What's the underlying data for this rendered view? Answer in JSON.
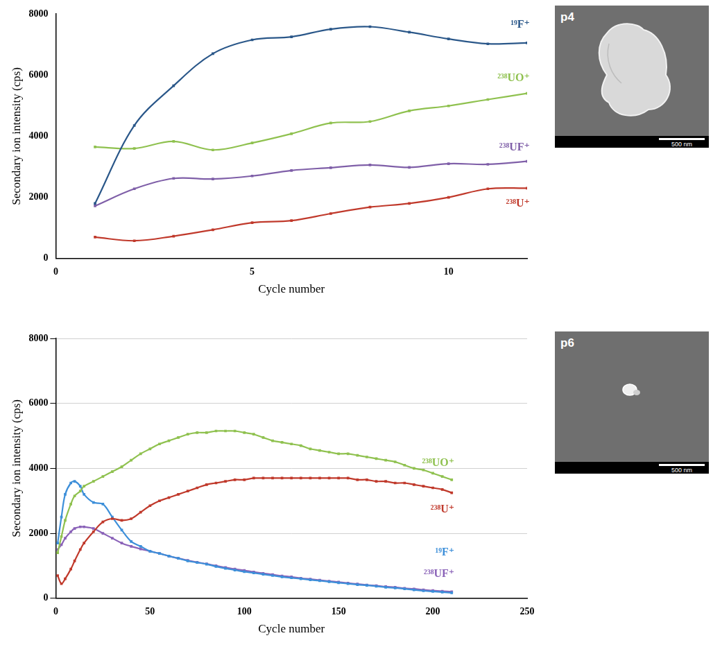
{
  "chart_data": [
    {
      "type": "line",
      "x_label": "Cycle number",
      "y_label": "Secondary ion intensity (cps)",
      "xlim": [
        0,
        12
      ],
      "xticks": [
        0,
        5,
        10
      ],
      "ylim": [
        0,
        8000
      ],
      "yticks": [
        0,
        2000,
        4000,
        6000,
        8000
      ],
      "grid": false,
      "x": [
        1,
        2,
        3,
        4,
        5,
        6,
        7,
        8,
        9,
        10,
        11,
        12
      ],
      "series": [
        {
          "name": "¹⁹F⁺",
          "color": "#2a5789",
          "marker": "square",
          "line_style": "solid",
          "values": [
            1800,
            4350,
            5650,
            6700,
            7150,
            7250,
            7500,
            7580,
            7400,
            7180,
            7020,
            7050
          ]
        },
        {
          "name": "²³⁸UO⁺",
          "color": "#8fc14f",
          "marker": "square",
          "line_style": "solid",
          "values": [
            3650,
            3600,
            3830,
            3550,
            3780,
            4080,
            4430,
            4480,
            4830,
            4990,
            5200,
            5400
          ]
        },
        {
          "name": "²³⁸UF⁺",
          "color": "#7f5fa8",
          "marker": "square",
          "line_style": "solid",
          "values": [
            1720,
            2280,
            2620,
            2600,
            2700,
            2880,
            2970,
            3060,
            2980,
            3100,
            3080,
            3180
          ]
        },
        {
          "name": "²³⁸U⁺",
          "color": "#c0392b",
          "marker": "square",
          "line_style": "solid",
          "values": [
            700,
            580,
            730,
            940,
            1170,
            1240,
            1470,
            1680,
            1800,
            2000,
            2280,
            2300
          ]
        }
      ]
    },
    {
      "type": "line",
      "x_label": "Cycle number",
      "y_label": "Secondary ion intensity (cps)",
      "xlim": [
        0,
        250
      ],
      "xticks": [
        0,
        50,
        100,
        150,
        200,
        250
      ],
      "ylim": [
        0,
        8000
      ],
      "yticks": [
        0,
        2000,
        4000,
        6000,
        8000
      ],
      "grid": "y",
      "x": [
        1,
        3,
        5,
        8,
        10,
        13,
        15,
        20,
        25,
        30,
        35,
        40,
        45,
        50,
        55,
        60,
        65,
        70,
        75,
        80,
        85,
        90,
        95,
        100,
        105,
        110,
        115,
        120,
        125,
        130,
        135,
        140,
        145,
        150,
        155,
        160,
        165,
        170,
        175,
        180,
        185,
        190,
        195,
        200,
        205,
        210
      ],
      "series": [
        {
          "name": "²³⁸UO⁺",
          "color": "#8fc14f",
          "marker": "square",
          "line_style": "solid",
          "values": [
            1400,
            1900,
            2400,
            2900,
            3150,
            3300,
            3450,
            3600,
            3750,
            3900,
            4050,
            4250,
            4450,
            4600,
            4750,
            4850,
            4950,
            5050,
            5100,
            5100,
            5150,
            5150,
            5150,
            5100,
            5050,
            4950,
            4850,
            4800,
            4750,
            4700,
            4600,
            4550,
            4500,
            4450,
            4450,
            4400,
            4350,
            4300,
            4250,
            4200,
            4100,
            4000,
            3950,
            3850,
            3750,
            3650
          ]
        },
        {
          "name": "²³⁸U⁺",
          "color": "#c0392b",
          "marker": "square",
          "line_style": "solid",
          "values": [
            700,
            450,
            600,
            900,
            1150,
            1500,
            1700,
            2050,
            2350,
            2450,
            2400,
            2450,
            2650,
            2850,
            3000,
            3100,
            3200,
            3300,
            3400,
            3500,
            3550,
            3600,
            3650,
            3650,
            3700,
            3700,
            3700,
            3700,
            3700,
            3700,
            3700,
            3700,
            3700,
            3700,
            3700,
            3650,
            3650,
            3600,
            3600,
            3550,
            3550,
            3500,
            3450,
            3400,
            3350,
            3250
          ]
        },
        {
          "name": "¹⁹F⁺",
          "color": "#3d8fd9",
          "marker": "square",
          "line_style": "solid",
          "values": [
            1700,
            2500,
            3200,
            3550,
            3600,
            3450,
            3200,
            2950,
            2900,
            2500,
            2100,
            1750,
            1600,
            1450,
            1380,
            1300,
            1230,
            1150,
            1100,
            1050,
            980,
            920,
            870,
            820,
            780,
            740,
            700,
            660,
            630,
            600,
            570,
            540,
            510,
            480,
            450,
            420,
            400,
            370,
            340,
            320,
            290,
            260,
            230,
            210,
            190,
            170
          ]
        },
        {
          "name": "²³⁸UF⁺",
          "color": "#8a62b8",
          "marker": "square",
          "line_style": "solid",
          "values": [
            1500,
            1650,
            1850,
            2050,
            2150,
            2200,
            2200,
            2150,
            2000,
            1850,
            1700,
            1600,
            1520,
            1450,
            1380,
            1300,
            1230,
            1170,
            1110,
            1060,
            1000,
            950,
            900,
            860,
            810,
            770,
            730,
            690,
            660,
            620,
            590,
            560,
            530,
            500,
            470,
            440,
            410,
            390,
            360,
            340,
            310,
            290,
            260,
            240,
            220,
            200
          ]
        }
      ]
    }
  ],
  "images": [
    {
      "label": "p4",
      "scale_bar": "500 nm"
    },
    {
      "label": "p6",
      "scale_bar": "500 nm"
    }
  ]
}
